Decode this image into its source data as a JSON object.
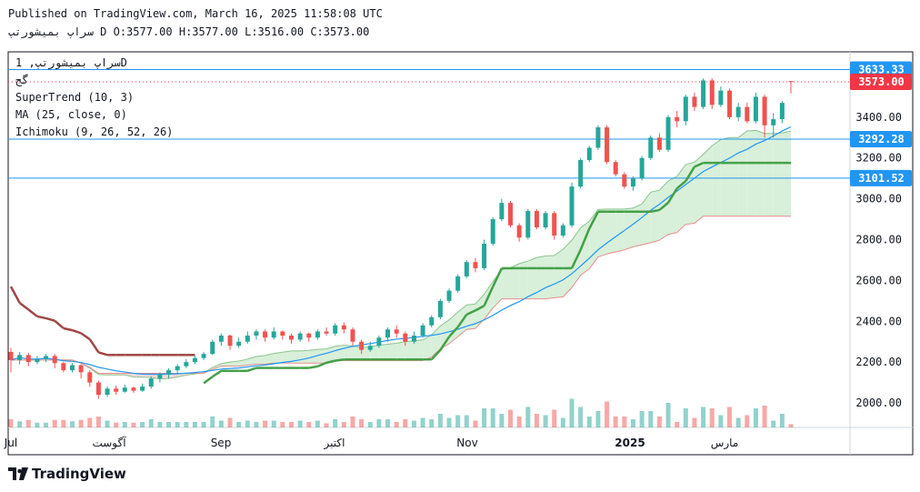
{
  "header": {
    "published": "Published on TradingView.com, March 16, 2025 11:58:08 UTC",
    "ohlc": "سراپ بمیشورتپ D O:3577.00 H:3577.00 L:3516.00 C:3573.00"
  },
  "legend": {
    "symbol": "سراپ بمیشورتپ, 1D",
    "market": "گج",
    "supertrend": "SuperTrend (10, 3)",
    "ma": "MA (25, close, 0)",
    "ichimoku": "Ichimoku (9, 26, 52, 26)"
  },
  "footer": {
    "brand": "TradingView"
  },
  "colors": {
    "up": "#26a69a",
    "down": "#ef5350",
    "ma": "#2196f3",
    "supertrend_up": "#43a047",
    "supertrend_down": "#a04545",
    "hline": "#2196f3",
    "price_label": "#f23645",
    "cloud_green": "#d8efd9",
    "cloud_red": "#f9d9d9"
  },
  "chart_data": {
    "type": "candlestick",
    "y_axis": {
      "min": 1880,
      "max": 3720,
      "ticks": [
        "2000.00",
        "2200.00",
        "2400.00",
        "2600.00",
        "2800.00",
        "3000.00",
        "3200.00",
        "3400.00"
      ]
    },
    "x_axis": {
      "labels": [
        "Jul",
        "آگوست",
        "Sep",
        "اکتبر",
        "Nov",
        "2025",
        "مارس"
      ]
    },
    "horizontal_lines": [
      {
        "value": 3633.33,
        "label": "3633.33"
      },
      {
        "value": 3292.28,
        "label": "3292.28"
      },
      {
        "value": 3101.52,
        "label": "3101.52"
      }
    ],
    "last_price": {
      "value": 3573.0,
      "label": "3573.00"
    },
    "candles": [
      {
        "o": 2250,
        "c": 2210,
        "h": 2270,
        "l": 2150
      },
      {
        "o": 2210,
        "c": 2235,
        "h": 2250,
        "l": 2190
      },
      {
        "o": 2235,
        "c": 2200,
        "h": 2245,
        "l": 2180
      },
      {
        "o": 2200,
        "c": 2215,
        "h": 2230,
        "l": 2190
      },
      {
        "o": 2215,
        "c": 2230,
        "h": 2240,
        "l": 2200
      },
      {
        "o": 2230,
        "c": 2195,
        "h": 2240,
        "l": 2170
      },
      {
        "o": 2195,
        "c": 2160,
        "h": 2200,
        "l": 2150
      },
      {
        "o": 2160,
        "c": 2185,
        "h": 2195,
        "l": 2150
      },
      {
        "o": 2185,
        "c": 2150,
        "h": 2190,
        "l": 2120
      },
      {
        "o": 2150,
        "c": 2100,
        "h": 2160,
        "l": 2080
      },
      {
        "o": 2100,
        "c": 2040,
        "h": 2110,
        "l": 2020
      },
      {
        "o": 2040,
        "c": 2070,
        "h": 2080,
        "l": 2030
      },
      {
        "o": 2070,
        "c": 2055,
        "h": 2085,
        "l": 2040
      },
      {
        "o": 2055,
        "c": 2075,
        "h": 2090,
        "l": 2050
      },
      {
        "o": 2075,
        "c": 2060,
        "h": 2080,
        "l": 2050
      },
      {
        "o": 2060,
        "c": 2080,
        "h": 2095,
        "l": 2055
      },
      {
        "o": 2080,
        "c": 2120,
        "h": 2130,
        "l": 2070
      },
      {
        "o": 2120,
        "c": 2140,
        "h": 2150,
        "l": 2100
      },
      {
        "o": 2140,
        "c": 2160,
        "h": 2170,
        "l": 2120
      },
      {
        "o": 2160,
        "c": 2180,
        "h": 2190,
        "l": 2140
      },
      {
        "o": 2180,
        "c": 2200,
        "h": 2215,
        "l": 2170
      },
      {
        "o": 2200,
        "c": 2220,
        "h": 2230,
        "l": 2190
      },
      {
        "o": 2220,
        "c": 2240,
        "h": 2250,
        "l": 2210
      },
      {
        "o": 2240,
        "c": 2300,
        "h": 2310,
        "l": 2235
      },
      {
        "o": 2300,
        "c": 2330,
        "h": 2340,
        "l": 2280
      },
      {
        "o": 2330,
        "c": 2280,
        "h": 2335,
        "l": 2260
      },
      {
        "o": 2280,
        "c": 2300,
        "h": 2320,
        "l": 2270
      },
      {
        "o": 2300,
        "c": 2330,
        "h": 2350,
        "l": 2290
      },
      {
        "o": 2330,
        "c": 2350,
        "h": 2360,
        "l": 2310
      },
      {
        "o": 2350,
        "c": 2320,
        "h": 2360,
        "l": 2300
      },
      {
        "o": 2320,
        "c": 2350,
        "h": 2370,
        "l": 2310
      },
      {
        "o": 2350,
        "c": 2330,
        "h": 2355,
        "l": 2310
      },
      {
        "o": 2330,
        "c": 2310,
        "h": 2340,
        "l": 2290
      },
      {
        "o": 2310,
        "c": 2340,
        "h": 2350,
        "l": 2300
      },
      {
        "o": 2340,
        "c": 2320,
        "h": 2345,
        "l": 2300
      },
      {
        "o": 2320,
        "c": 2350,
        "h": 2360,
        "l": 2310
      },
      {
        "o": 2350,
        "c": 2340,
        "h": 2370,
        "l": 2330
      },
      {
        "o": 2340,
        "c": 2380,
        "h": 2390,
        "l": 2330
      },
      {
        "o": 2380,
        "c": 2360,
        "h": 2395,
        "l": 2340
      },
      {
        "o": 2360,
        "c": 2300,
        "h": 2370,
        "l": 2280
      },
      {
        "o": 2300,
        "c": 2260,
        "h": 2310,
        "l": 2240
      },
      {
        "o": 2260,
        "c": 2280,
        "h": 2300,
        "l": 2250
      },
      {
        "o": 2280,
        "c": 2320,
        "h": 2330,
        "l": 2270
      },
      {
        "o": 2320,
        "c": 2360,
        "h": 2370,
        "l": 2300
      },
      {
        "o": 2360,
        "c": 2340,
        "h": 2380,
        "l": 2320
      },
      {
        "o": 2340,
        "c": 2300,
        "h": 2350,
        "l": 2280
      },
      {
        "o": 2300,
        "c": 2330,
        "h": 2350,
        "l": 2290
      },
      {
        "o": 2330,
        "c": 2380,
        "h": 2390,
        "l": 2320
      },
      {
        "o": 2380,
        "c": 2420,
        "h": 2430,
        "l": 2370
      },
      {
        "o": 2420,
        "c": 2500,
        "h": 2510,
        "l": 2410
      },
      {
        "o": 2500,
        "c": 2550,
        "h": 2560,
        "l": 2490
      },
      {
        "o": 2550,
        "c": 2620,
        "h": 2630,
        "l": 2540
      },
      {
        "o": 2620,
        "c": 2690,
        "h": 2700,
        "l": 2610
      },
      {
        "o": 2690,
        "c": 2660,
        "h": 2710,
        "l": 2640
      },
      {
        "o": 2660,
        "c": 2780,
        "h": 2800,
        "l": 2650
      },
      {
        "o": 2780,
        "c": 2900,
        "h": 2910,
        "l": 2770
      },
      {
        "o": 2900,
        "c": 2980,
        "h": 3000,
        "l": 2890
      },
      {
        "o": 2980,
        "c": 2870,
        "h": 2990,
        "l": 2860
      },
      {
        "o": 2870,
        "c": 2810,
        "h": 2880,
        "l": 2790
      },
      {
        "o": 2810,
        "c": 2940,
        "h": 2950,
        "l": 2800
      },
      {
        "o": 2940,
        "c": 2860,
        "h": 2950,
        "l": 2850
      },
      {
        "o": 2860,
        "c": 2930,
        "h": 2940,
        "l": 2850
      },
      {
        "o": 2930,
        "c": 2820,
        "h": 2940,
        "l": 2800
      },
      {
        "o": 2820,
        "c": 2870,
        "h": 2880,
        "l": 2810
      },
      {
        "o": 2870,
        "c": 3060,
        "h": 3080,
        "l": 2860
      },
      {
        "o": 3060,
        "c": 3190,
        "h": 3200,
        "l": 3050
      },
      {
        "o": 3190,
        "c": 3250,
        "h": 3260,
        "l": 3180
      },
      {
        "o": 3250,
        "c": 3350,
        "h": 3360,
        "l": 3240
      },
      {
        "o": 3350,
        "c": 3180,
        "h": 3360,
        "l": 3170
      },
      {
        "o": 3180,
        "c": 3120,
        "h": 3190,
        "l": 3110
      },
      {
        "o": 3120,
        "c": 3060,
        "h": 3130,
        "l": 3050
      },
      {
        "o": 3060,
        "c": 3100,
        "h": 3110,
        "l": 3040
      },
      {
        "o": 3100,
        "c": 3200,
        "h": 3210,
        "l": 3090
      },
      {
        "o": 3200,
        "c": 3300,
        "h": 3310,
        "l": 3190
      },
      {
        "o": 3300,
        "c": 3240,
        "h": 3320,
        "l": 3230
      },
      {
        "o": 3240,
        "c": 3400,
        "h": 3410,
        "l": 3230
      },
      {
        "o": 3400,
        "c": 3380,
        "h": 3430,
        "l": 3350
      },
      {
        "o": 3380,
        "c": 3500,
        "h": 3510,
        "l": 3360
      },
      {
        "o": 3500,
        "c": 3450,
        "h": 3520,
        "l": 3430
      },
      {
        "o": 3450,
        "c": 3580,
        "h": 3590,
        "l": 3440
      },
      {
        "o": 3580,
        "c": 3460,
        "h": 3590,
        "l": 3440
      },
      {
        "o": 3460,
        "c": 3530,
        "h": 3550,
        "l": 3450
      },
      {
        "o": 3530,
        "c": 3400,
        "h": 3540,
        "l": 3390
      },
      {
        "o": 3400,
        "c": 3450,
        "h": 3470,
        "l": 3380
      },
      {
        "o": 3450,
        "c": 3380,
        "h": 3470,
        "l": 3370
      },
      {
        "o": 3380,
        "c": 3500,
        "h": 3520,
        "l": 3370
      },
      {
        "o": 3500,
        "c": 3360,
        "h": 3510,
        "l": 3300
      },
      {
        "o": 3360,
        "c": 3390,
        "h": 3420,
        "l": 3300
      },
      {
        "o": 3390,
        "c": 3470,
        "h": 3480,
        "l": 3370
      },
      {
        "o": 3577,
        "c": 3573,
        "h": 3577,
        "l": 3516
      }
    ]
  }
}
